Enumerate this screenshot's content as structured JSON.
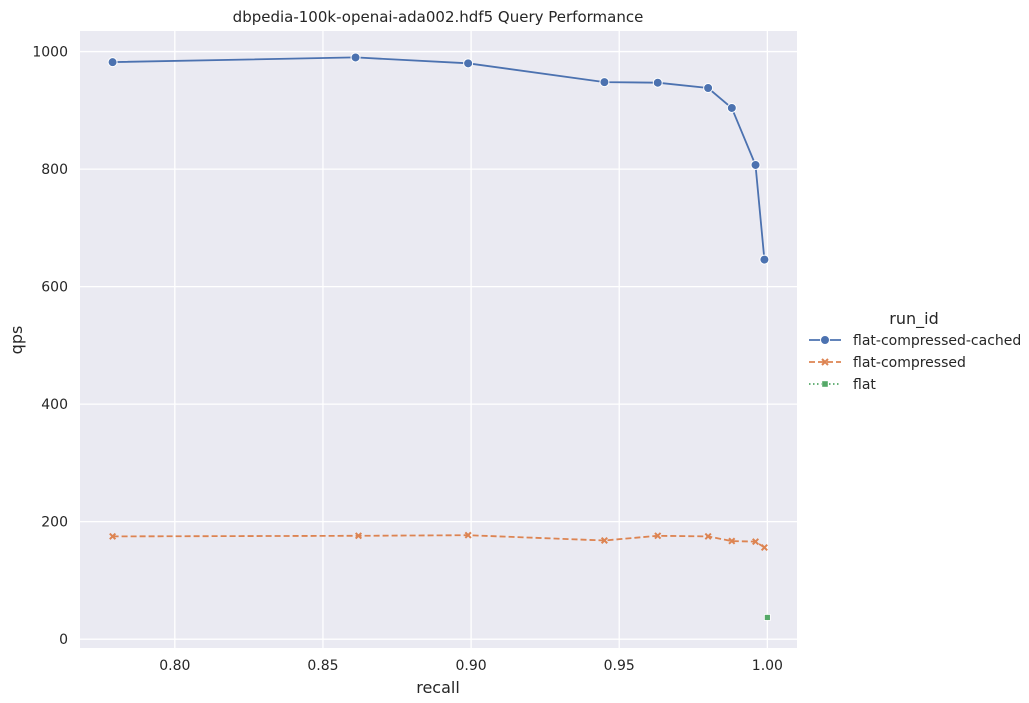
{
  "chart_data": {
    "type": "line",
    "title": "dbpedia-100k-openai-ada002.hdf5 Query Performance",
    "xlabel": "recall",
    "ylabel": "qps",
    "xlim": [
      0.768,
      1.01
    ],
    "ylim": [
      -15,
      1035
    ],
    "x_ticks": [
      0.8,
      0.85,
      0.9,
      0.95,
      1.0
    ],
    "x_tick_labels": [
      "0.80",
      "0.85",
      "0.90",
      "0.95",
      "1.00"
    ],
    "y_ticks": [
      0,
      200,
      400,
      600,
      800,
      1000
    ],
    "y_tick_labels": [
      "0",
      "200",
      "400",
      "600",
      "800",
      "1000"
    ],
    "grid": true,
    "legend_title": "run_id",
    "legend_position": "right",
    "series": [
      {
        "name": "flat-compressed-cached",
        "color": "#4c72b0",
        "marker": "circle",
        "line_style": "solid",
        "points": [
          [
            0.779,
            982
          ],
          [
            0.861,
            990
          ],
          [
            0.899,
            980
          ],
          [
            0.945,
            948
          ],
          [
            0.963,
            947
          ],
          [
            0.98,
            938
          ],
          [
            0.988,
            904
          ],
          [
            0.996,
            807
          ],
          [
            0.999,
            646
          ]
        ]
      },
      {
        "name": "flat-compressed",
        "color": "#dd8452",
        "marker": "x",
        "line_style": "dashed",
        "points": [
          [
            0.779,
            175
          ],
          [
            0.862,
            176
          ],
          [
            0.899,
            177
          ],
          [
            0.945,
            168
          ],
          [
            0.963,
            176
          ],
          [
            0.98,
            175
          ],
          [
            0.988,
            167
          ],
          [
            0.996,
            166
          ],
          [
            0.999,
            156
          ]
        ]
      },
      {
        "name": "flat",
        "color": "#55a868",
        "marker": "square",
        "line_style": "dotted",
        "points": [
          [
            1.0,
            37
          ]
        ]
      }
    ]
  }
}
